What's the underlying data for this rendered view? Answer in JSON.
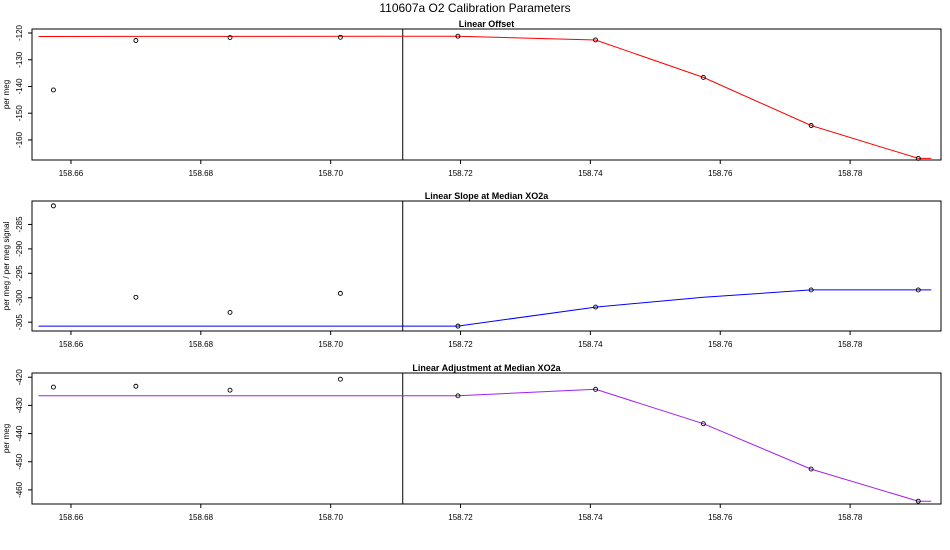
{
  "page_title": "110607a   O2 Calibration Parameters",
  "chart_data": [
    {
      "type": "scatter",
      "title": "Linear Offset",
      "xlabel": "",
      "ylabel": "per meg",
      "xlim": [
        158.654,
        158.794
      ],
      "ylim": [
        -167.5,
        -118.5
      ],
      "xticks": [
        "158.66",
        "158.68",
        "158.70",
        "158.72",
        "158.74",
        "158.76",
        "158.78"
      ],
      "yticks": [
        "-120",
        "-130",
        "-140",
        "-150",
        "-160"
      ],
      "vline_x": 158.7111,
      "line_color": "#ff0000",
      "points": [
        {
          "x": 158.6573,
          "y": -141.3
        },
        {
          "x": 158.67,
          "y": -122.8
        },
        {
          "x": 158.6845,
          "y": -121.7
        },
        {
          "x": 158.7015,
          "y": -121.6
        },
        {
          "x": 158.7196,
          "y": -121.2
        },
        {
          "x": 158.7408,
          "y": -122.6
        },
        {
          "x": 158.7574,
          "y": -136.6
        },
        {
          "x": 158.774,
          "y": -154.6
        },
        {
          "x": 158.7905,
          "y": -166.9
        }
      ],
      "line": [
        {
          "x": 158.655,
          "y": -121.3
        },
        {
          "x": 158.7196,
          "y": -121.2
        },
        {
          "x": 158.7408,
          "y": -122.6
        },
        {
          "x": 158.7574,
          "y": -136.6
        },
        {
          "x": 158.774,
          "y": -154.6
        },
        {
          "x": 158.7905,
          "y": -166.9
        },
        {
          "x": 158.7925,
          "y": -166.9
        }
      ]
    },
    {
      "type": "scatter",
      "title": "Linear Slope at Median XO2a",
      "xlabel": "",
      "ylabel": "per meg / per meg signal",
      "xlim": [
        158.654,
        158.794
      ],
      "ylim": [
        -306.8,
        -280.2
      ],
      "xticks": [
        "158.66",
        "158.68",
        "158.70",
        "158.72",
        "158.74",
        "158.76",
        "158.78"
      ],
      "yticks": [
        "-285",
        "-290",
        "-295",
        "-300",
        "-305"
      ],
      "vline_x": 158.7111,
      "line_color": "#0000ff",
      "points": [
        {
          "x": 158.6573,
          "y": -281.2
        },
        {
          "x": 158.67,
          "y": -299.9
        },
        {
          "x": 158.6845,
          "y": -303.0
        },
        {
          "x": 158.7015,
          "y": -299.1
        },
        {
          "x": 158.7196,
          "y": -305.8
        },
        {
          "x": 158.7408,
          "y": -301.9
        },
        {
          "x": 158.774,
          "y": -298.4
        },
        {
          "x": 158.7905,
          "y": -298.4
        }
      ],
      "line": [
        {
          "x": 158.655,
          "y": -305.8
        },
        {
          "x": 158.7196,
          "y": -305.8
        },
        {
          "x": 158.7408,
          "y": -301.9
        },
        {
          "x": 158.7574,
          "y": -299.9
        },
        {
          "x": 158.774,
          "y": -298.4
        },
        {
          "x": 158.7905,
          "y": -298.4
        },
        {
          "x": 158.7925,
          "y": -298.4
        }
      ]
    },
    {
      "type": "scatter",
      "title": "Linear Adjustment at Median XO2a",
      "xlabel": "",
      "ylabel": "per meg",
      "xlim": [
        158.654,
        158.794
      ],
      "ylim": [
        -465.0,
        -418.5
      ],
      "xticks": [
        "158.66",
        "158.68",
        "158.70",
        "158.72",
        "158.74",
        "158.76",
        "158.78"
      ],
      "yticks": [
        "-420",
        "-430",
        "-440",
        "-450",
        "-460"
      ],
      "vline_x": 158.7111,
      "line_color": "#a020f0",
      "points": [
        {
          "x": 158.6573,
          "y": -423.5
        },
        {
          "x": 158.67,
          "y": -423.2
        },
        {
          "x": 158.6845,
          "y": -424.6
        },
        {
          "x": 158.7015,
          "y": -420.7
        },
        {
          "x": 158.7196,
          "y": -426.6
        },
        {
          "x": 158.7408,
          "y": -424.3
        },
        {
          "x": 158.7574,
          "y": -436.5
        },
        {
          "x": 158.774,
          "y": -452.6
        },
        {
          "x": 158.7905,
          "y": -464.0
        }
      ],
      "line": [
        {
          "x": 158.655,
          "y": -426.6
        },
        {
          "x": 158.7196,
          "y": -426.6
        },
        {
          "x": 158.7408,
          "y": -424.3
        },
        {
          "x": 158.7574,
          "y": -436.5
        },
        {
          "x": 158.774,
          "y": -452.6
        },
        {
          "x": 158.7905,
          "y": -464.0
        },
        {
          "x": 158.7925,
          "y": -464.0
        }
      ]
    }
  ]
}
